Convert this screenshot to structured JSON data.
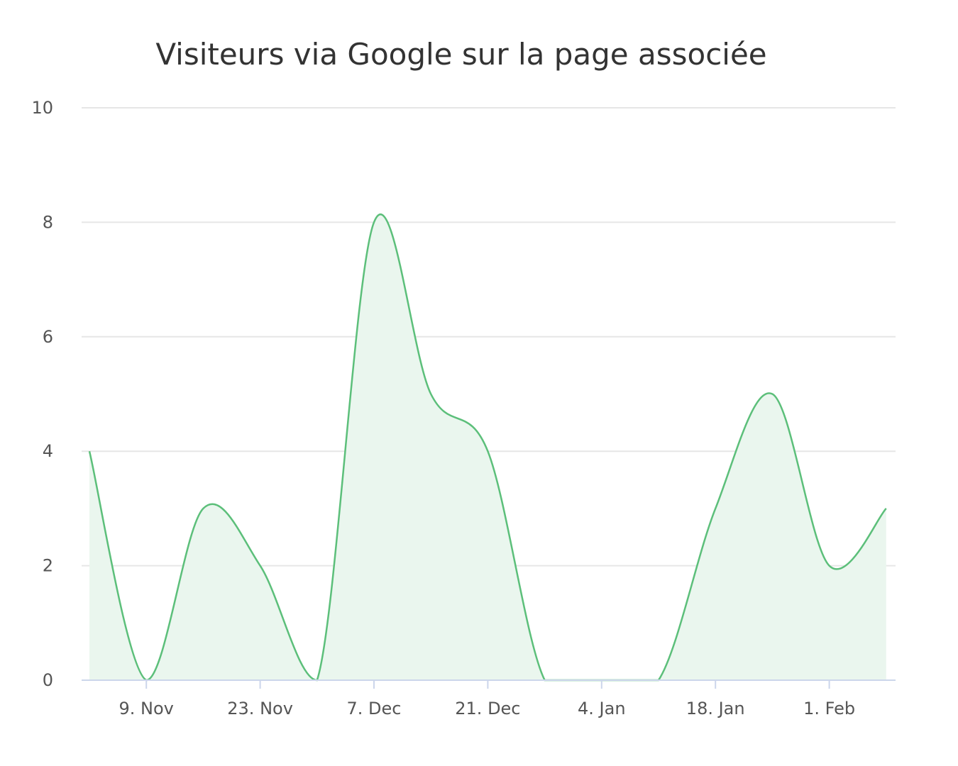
{
  "chart_data": {
    "type": "area",
    "title": "Visiteurs via Google sur la page associée",
    "xlabel": "",
    "ylabel": "",
    "x": [
      "2 Nov",
      "9 Nov",
      "16 Nov",
      "23 Nov",
      "30 Nov",
      "7 Dec",
      "14 Dec",
      "21 Dec",
      "28 Dec",
      "4 Jan",
      "11 Jan",
      "18 Jan",
      "25 Jan",
      "1 Feb",
      "8 Feb"
    ],
    "series": [
      {
        "values": [
          4,
          0,
          3,
          2,
          0,
          8,
          5,
          4,
          0,
          0,
          0,
          3,
          5,
          2,
          3
        ]
      }
    ],
    "x_ticks": [
      "9. Nov",
      "23. Nov",
      "7. Dec",
      "21. Dec",
      "4. Jan",
      "18. Jan",
      "1. Feb"
    ],
    "y_ticks": [
      "0",
      "2",
      "4",
      "6",
      "8",
      "10"
    ],
    "ylim": [
      0,
      10
    ],
    "grid": true,
    "legend": "none",
    "colors": {
      "line": "#5cbf7a",
      "fill": "#eaf6ee",
      "grid": "#e6e6e6",
      "axis": "#ccd6eb"
    }
  }
}
